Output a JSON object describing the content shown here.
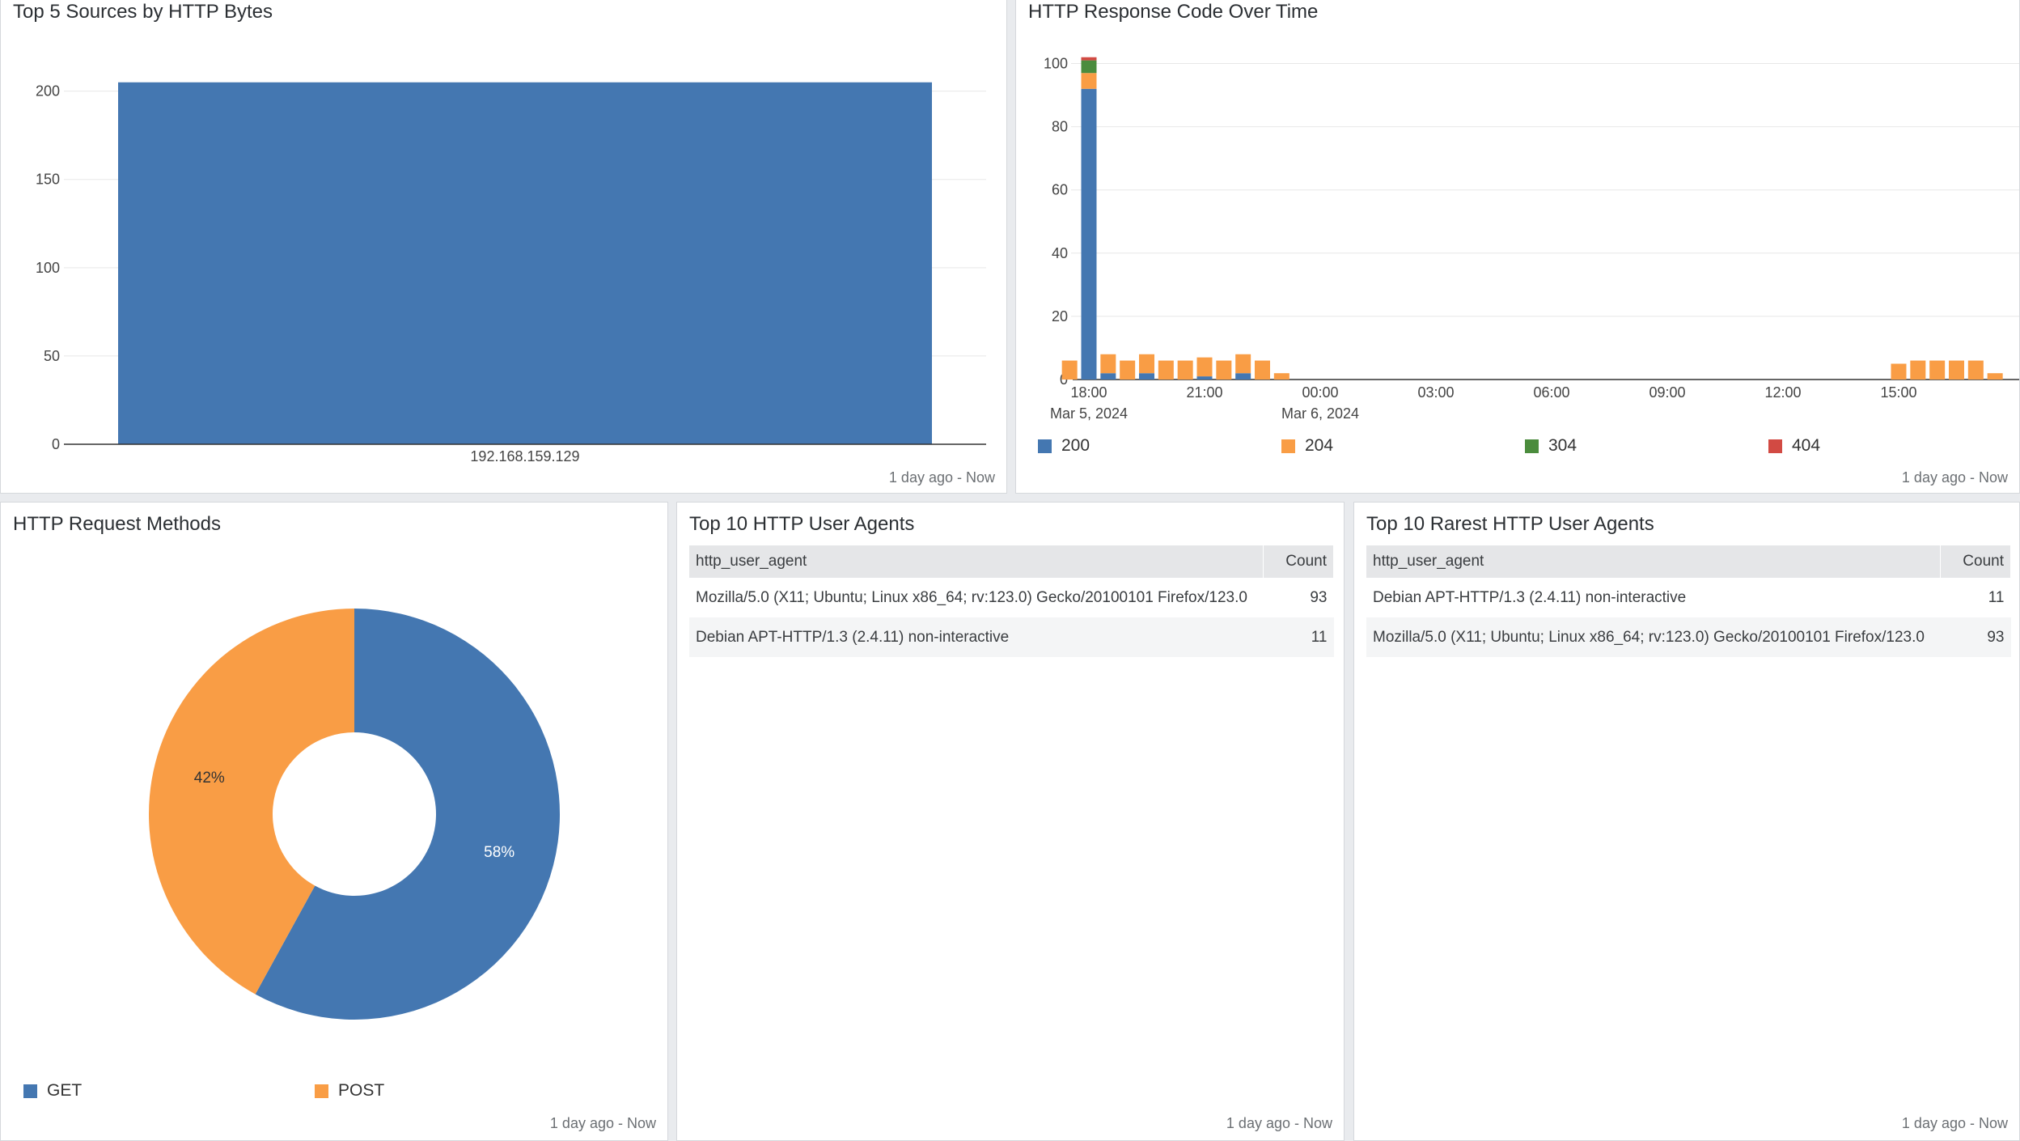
{
  "colors": {
    "blue": "#4477b1",
    "orange": "#f99d45",
    "green": "#4b8c3d",
    "red": "#d24a43",
    "grid": "#e8e8e8"
  },
  "panels": {
    "sources": {
      "title": "Top 5 Sources by HTTP Bytes",
      "footer": "1 day ago - Now"
    },
    "response": {
      "title": "HTTP Response Code Over Time",
      "footer": "1 day ago - Now",
      "legend": [
        {
          "label": "200",
          "color": "#4477b1"
        },
        {
          "label": "204",
          "color": "#f99d45"
        },
        {
          "label": "304",
          "color": "#4b8c3d"
        },
        {
          "label": "404",
          "color": "#d24a43"
        }
      ]
    },
    "methods": {
      "title": "HTTP Request Methods",
      "footer": "1 day ago - Now",
      "legend": [
        {
          "label": "GET",
          "color": "#4477b1"
        },
        {
          "label": "POST",
          "color": "#f99d45"
        }
      ]
    },
    "agents": {
      "title": "Top 10 HTTP User Agents",
      "footer": "1 day ago - Now",
      "columns": [
        "http_user_agent",
        "Count"
      ],
      "rows": [
        {
          "agent": "Mozilla/5.0 (X11; Ubuntu; Linux x86_64; rv:123.0) Gecko/20100101 Firefox/123.0",
          "count": "93"
        },
        {
          "agent": "Debian APT-HTTP/1.3 (2.4.11) non-interactive",
          "count": "11"
        }
      ]
    },
    "rare_agents": {
      "title": "Top 10 Rarest HTTP User Agents",
      "footer": "1 day ago - Now",
      "columns": [
        "http_user_agent",
        "Count"
      ],
      "rows": [
        {
          "agent": "Debian APT-HTTP/1.3 (2.4.11) non-interactive",
          "count": "11"
        },
        {
          "agent": "Mozilla/5.0 (X11; Ubuntu; Linux x86_64; rv:123.0) Gecko/20100101 Firefox/123.0",
          "count": "93"
        }
      ]
    }
  },
  "chart_data": [
    {
      "type": "bar",
      "title": "Top 5 Sources by HTTP Bytes",
      "categories": [
        "192.168.159.129"
      ],
      "values": [
        205
      ],
      "ylim": [
        0,
        220
      ],
      "yticks": [
        0,
        50,
        100,
        150,
        200
      ],
      "grid": true
    },
    {
      "type": "bar",
      "stacked": true,
      "title": "HTTP Response Code Over Time",
      "x": [
        "17:30",
        "18:00",
        "18:30",
        "19:00",
        "19:30",
        "20:00",
        "20:30",
        "21:00",
        "21:30",
        "22:00",
        "22:30",
        "23:00",
        "23:30",
        "00:00",
        "14:30",
        "15:00",
        "15:30",
        "16:00",
        "16:30",
        "17:00",
        "17:30"
      ],
      "series": [
        {
          "name": "200",
          "values": [
            0,
            92,
            2,
            0,
            2,
            0,
            0,
            1,
            0,
            2,
            0,
            0,
            0,
            0,
            0,
            0,
            0,
            0,
            0,
            0,
            0
          ]
        },
        {
          "name": "204",
          "values": [
            6,
            5,
            6,
            6,
            6,
            6,
            6,
            6,
            6,
            6,
            6,
            2,
            0,
            0,
            0,
            5,
            6,
            6,
            6,
            6,
            2
          ]
        },
        {
          "name": "304",
          "values": [
            0,
            4,
            0,
            0,
            0,
            0,
            0,
            0,
            0,
            0,
            0,
            0,
            0,
            0,
            0,
            0,
            0,
            0,
            0,
            0,
            0
          ]
        },
        {
          "name": "404",
          "values": [
            0,
            1,
            0,
            0,
            0,
            0,
            0,
            0,
            0,
            0,
            0,
            0,
            0,
            0,
            0,
            0,
            0,
            0,
            0,
            0,
            0
          ]
        }
      ],
      "xticks": [
        "18:00",
        "21:00",
        "00:00",
        "03:00",
        "06:00",
        "09:00",
        "12:00",
        "15:00"
      ],
      "date_labels": [
        "Mar 5, 2024",
        "Mar 6, 2024"
      ],
      "ylim": [
        0,
        105
      ],
      "yticks": [
        0,
        20,
        40,
        60,
        80,
        100
      ],
      "grid": true,
      "legend": "bottom"
    },
    {
      "type": "pie",
      "donut": true,
      "title": "HTTP Request Methods",
      "labels": [
        "GET",
        "POST"
      ],
      "values": [
        58,
        42
      ],
      "value_labels": [
        "58%",
        "42%"
      ],
      "legend": "bottom"
    }
  ]
}
